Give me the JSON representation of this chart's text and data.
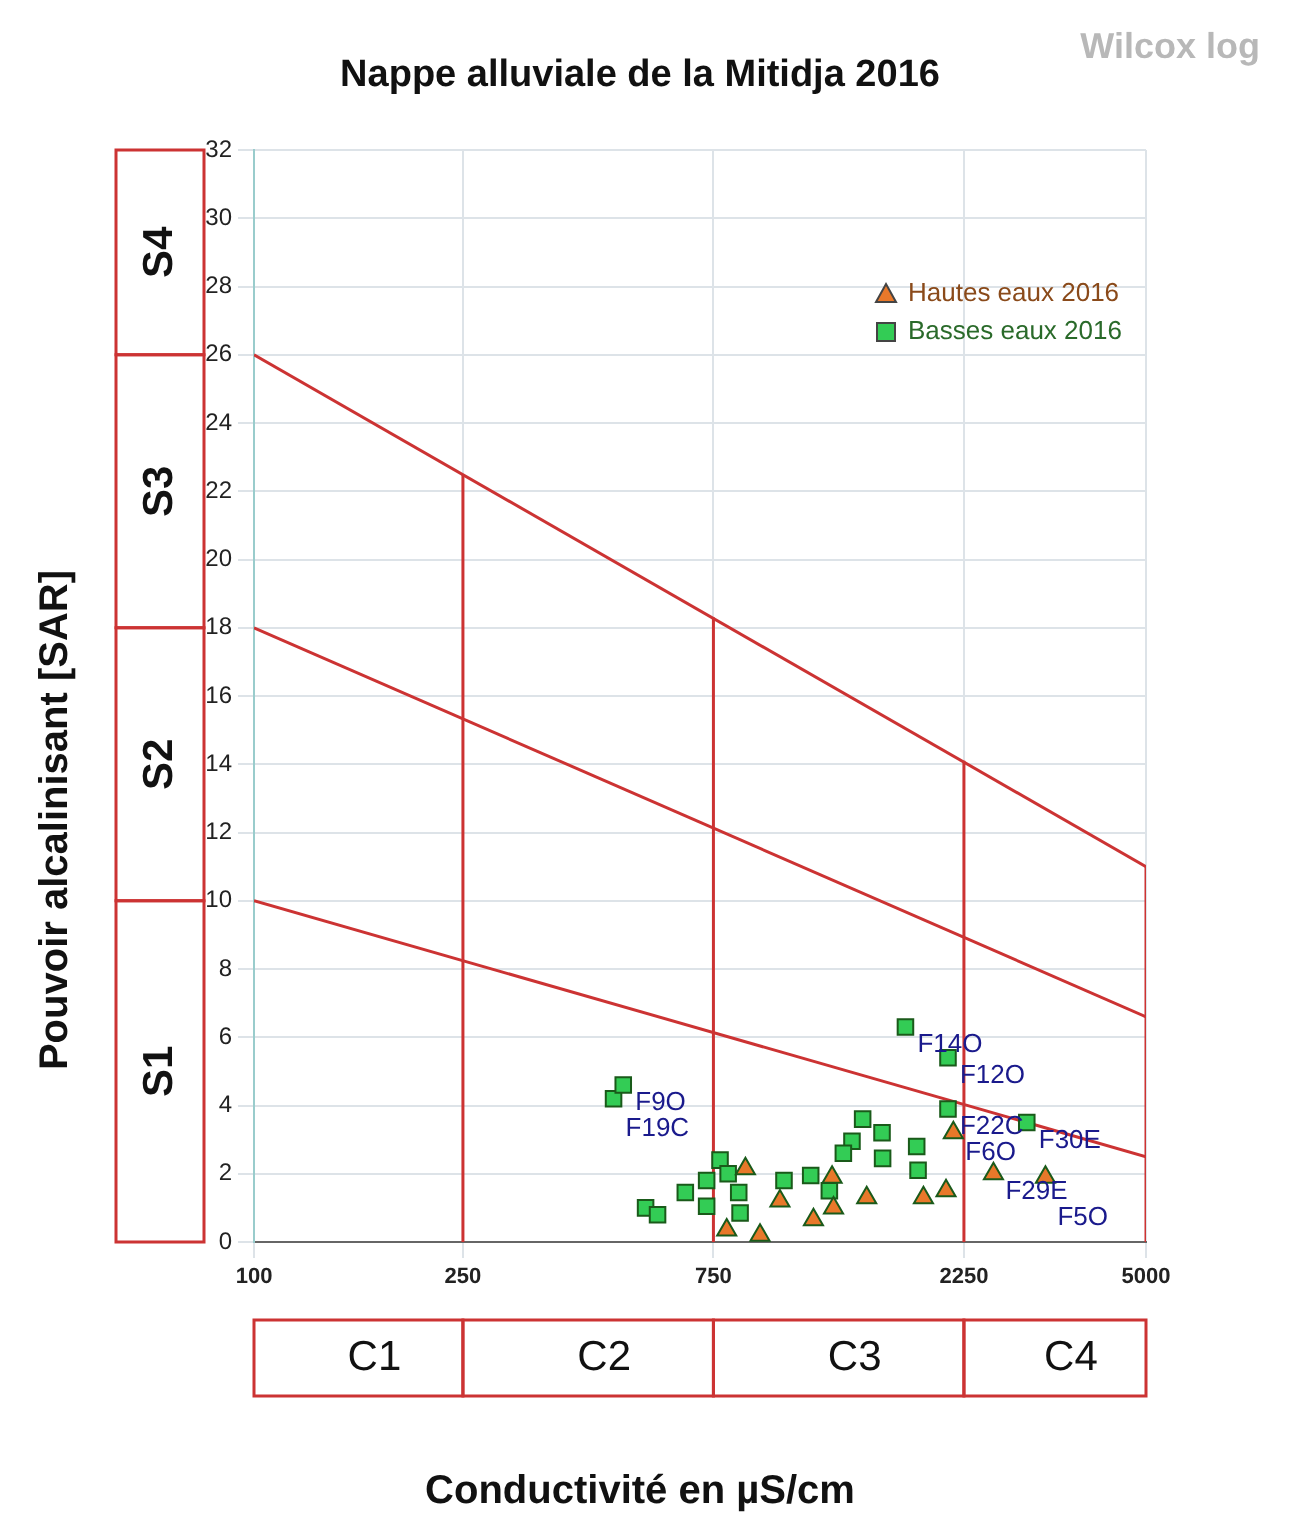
{
  "chart_data": {
    "type": "scatter",
    "title": "Nappe alluviale de la Mitidja 2016",
    "xlabel": "Conductivité en µS/cm",
    "ylabel": "Pouvoir alcalinisant [SAR]",
    "log": "x",
    "xlim": [
      100,
      5000
    ],
    "xticks": [
      100,
      250,
      750,
      2250,
      5000
    ],
    "ylim": [
      0,
      32
    ],
    "yticks": [
      0,
      2,
      4,
      6,
      8,
      10,
      12,
      14,
      16,
      18,
      20,
      22,
      24,
      26,
      28,
      30,
      32
    ],
    "grid": true,
    "legend": "top right",
    "series": [
      {
        "name": "Hautes eaux 2016",
        "color": "#e8782a",
        "marker": "triangle",
        "x": [
          863,
          1262,
          2148,
          2561,
          3217,
          1004,
          1270,
          1469,
          1884,
          795,
          920,
          2080,
          1163
        ],
        "values": [
          2.15,
          1.9,
          3.2,
          2.0,
          1.9,
          1.2,
          1.0,
          1.3,
          1.3,
          0.35,
          0.2,
          1.5,
          0.65
        ]
      },
      {
        "name": "Basses eaux 2016",
        "color": "#33cc55",
        "marker": "square",
        "x": [
          484,
          505,
          1741,
          2098,
          2098,
          2964,
          1443,
          1571,
          1377,
          1326,
          1829,
          1840,
          1575,
          772,
          800,
          728,
          663,
          838,
          1022,
          1149,
          1247,
          557,
          587,
          728,
          843
        ],
        "values": [
          4.2,
          4.6,
          6.3,
          5.4,
          3.9,
          3.5,
          3.6,
          3.2,
          2.95,
          2.6,
          2.8,
          2.1,
          2.45,
          2.4,
          2.0,
          1.8,
          1.45,
          1.45,
          1.8,
          1.95,
          1.5,
          1.0,
          0.8,
          1.05,
          0.85
        ]
      },
      {
        "type": "line",
        "color": "#cc3333",
        "x": [
          100,
          5000
        ],
        "values": [
          10,
          2.5
        ]
      },
      {
        "type": "line",
        "color": "#cc3333",
        "x": [
          100,
          5000
        ],
        "values": [
          18,
          6.6
        ]
      },
      {
        "type": "line",
        "color": "#cc3333",
        "x": [
          100,
          5000
        ],
        "values": [
          26,
          11
        ]
      },
      {
        "type": "line",
        "color": "#cc3333",
        "x": [
          250,
          250
        ],
        "values": [
          0,
          22.5
        ]
      },
      {
        "type": "line",
        "color": "#cc3333",
        "x": [
          750,
          750
        ],
        "values": [
          0,
          18.3
        ]
      },
      {
        "type": "line",
        "color": "#cc3333",
        "x": [
          2250,
          2250
        ],
        "values": [
          0,
          14.1
        ]
      },
      {
        "type": "line",
        "color": "#cc3333",
        "x": [
          5000,
          5000
        ],
        "values": [
          0,
          11
        ]
      }
    ],
    "annotations": [
      "Wilcox log",
      "S1",
      "S2",
      "S3",
      "S4",
      "C1",
      "C2",
      "C3",
      "C4",
      {
        "text": "F9O",
        "x": 505,
        "y": 4.6
      },
      {
        "text": "F19C",
        "x": 484,
        "y": 4.2
      },
      {
        "text": "F14O",
        "x": 1741,
        "y": 6.3
      },
      {
        "text": "F12O",
        "x": 2098,
        "y": 5.4
      },
      {
        "text": "F22C",
        "x": 2098,
        "y": 3.9
      },
      {
        "text": "F30E",
        "x": 2964,
        "y": 3.5
      },
      {
        "text": "F6O",
        "x": 2148,
        "y": 3.2
      },
      {
        "text": "F29E",
        "x": 2561,
        "y": 2.0
      },
      {
        "text": "F5O",
        "x": 3217,
        "y": 1.9
      }
    ]
  }
}
